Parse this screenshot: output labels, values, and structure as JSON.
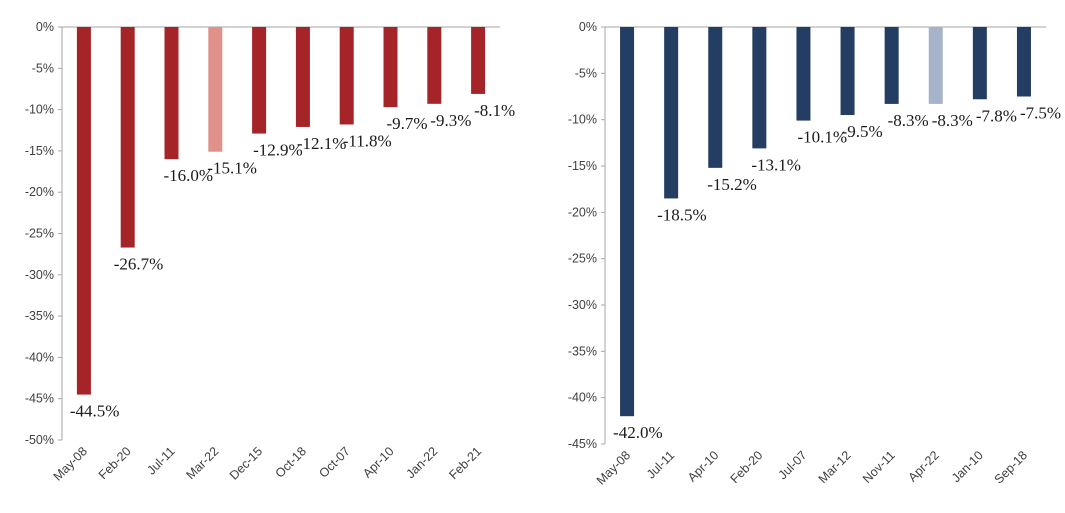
{
  "chart_data": [
    {
      "type": "bar",
      "categories": [
        "May-08",
        "Feb-20",
        "Jul-11",
        "Mar-22",
        "Dec-15",
        "Oct-18",
        "Oct-07",
        "Apr-10",
        "Jan-22",
        "Feb-21"
      ],
      "values": [
        -44.5,
        -26.7,
        -16.0,
        -15.1,
        -12.9,
        -12.1,
        -11.8,
        -9.7,
        -9.3,
        -8.1
      ],
      "data_labels": [
        "-44.5%",
        "-26.7%",
        "-16.0%",
        "-15.1%",
        "-12.9%",
        "-12.1%",
        "-11.8%",
        "-9.7%",
        "-9.3%",
        "-8.1%"
      ],
      "ylim": [
        -50,
        0
      ],
      "yticks": [
        0,
        -5,
        -10,
        -15,
        -20,
        -25,
        -30,
        -35,
        -40,
        -45,
        -50
      ],
      "ytick_labels": [
        "0%",
        "-5%",
        "-10%",
        "-15%",
        "-20%",
        "-25%",
        "-30%",
        "-35%",
        "-40%",
        "-45%",
        "-50%"
      ],
      "bar_color": "#a52427",
      "highlight_index": 3,
      "highlight_color": "#e0918a",
      "grid": false,
      "title": "",
      "xlabel": "",
      "ylabel": ""
    },
    {
      "type": "bar",
      "categories": [
        "May-08",
        "Jul-11",
        "Apr-10",
        "Feb-20",
        "Jul-07",
        "Mar-12",
        "Nov-11",
        "Apr-22",
        "Jan-10",
        "Sep-18"
      ],
      "values": [
        -42.0,
        -18.5,
        -15.2,
        -13.1,
        -10.1,
        -9.5,
        -8.3,
        -8.3,
        -7.8,
        -7.5
      ],
      "data_labels": [
        "-42.0%",
        "-18.5%",
        "-15.2%",
        "-13.1%",
        "-10.1%",
        "-9.5%",
        "-8.3%",
        "-8.3%",
        "-7.8%",
        "-7.5%"
      ],
      "ylim": [
        -45,
        0
      ],
      "yticks": [
        0,
        -5,
        -10,
        -15,
        -20,
        -25,
        -30,
        -35,
        -40,
        -45
      ],
      "ytick_labels": [
        "0%",
        "-5%",
        "-10%",
        "-15%",
        "-20%",
        "-25%",
        "-30%",
        "-35%",
        "-40%",
        "-45%"
      ],
      "bar_color": "#233d63",
      "highlight_index": 7,
      "highlight_color": "#a5b4c9",
      "grid": false,
      "title": "",
      "xlabel": "",
      "ylabel": ""
    }
  ]
}
